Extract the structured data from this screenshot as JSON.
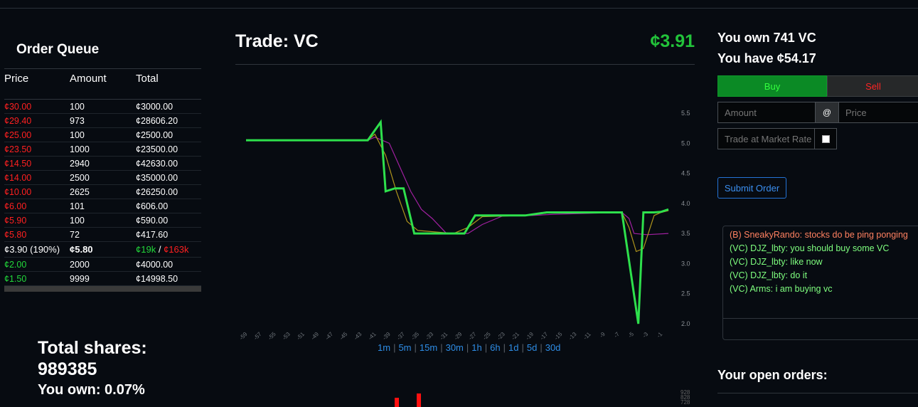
{
  "order_queue": {
    "title": "Order Queue",
    "headers": [
      "Price",
      "Amount",
      "Total"
    ],
    "sell_rows": [
      {
        "price": "¢30.00",
        "amount": "100",
        "total": "¢3000.00"
      },
      {
        "price": "¢29.40",
        "amount": "973",
        "total": "¢28606.20"
      },
      {
        "price": "¢25.00",
        "amount": "100",
        "total": "¢2500.00"
      },
      {
        "price": "¢23.50",
        "amount": "1000",
        "total": "¢23500.00"
      },
      {
        "price": "¢14.50",
        "amount": "2940",
        "total": "¢42630.00"
      },
      {
        "price": "¢14.00",
        "amount": "2500",
        "total": "¢35000.00"
      },
      {
        "price": "¢10.00",
        "amount": "2625",
        "total": "¢26250.00"
      },
      {
        "price": "¢6.00",
        "amount": "101",
        "total": "¢606.00"
      },
      {
        "price": "¢5.90",
        "amount": "100",
        "total": "¢590.00"
      },
      {
        "price": "¢5.80",
        "amount": "72",
        "total": "¢417.60"
      }
    ],
    "mid_row": {
      "price": "¢3.90 (190%)",
      "amount": "¢5.80",
      "buy_total": "¢19k",
      "slash": "/",
      "sell_total": "¢163k"
    },
    "buy_rows": [
      {
        "price": "¢2.00",
        "amount": "2000",
        "total": "¢4000.00"
      },
      {
        "price": "¢1.50",
        "amount": "9999",
        "total": "¢14998.50"
      }
    ]
  },
  "stats": {
    "total_shares_label": "Total shares:",
    "total_shares_value": "989385",
    "you_own": "You own: 0.07%"
  },
  "trade": {
    "title": "Trade: VC",
    "price": "¢3.91",
    "timeframes": [
      "1m",
      "5m",
      "15m",
      "30m",
      "1h",
      "6h",
      "1d",
      "5d",
      "30d"
    ]
  },
  "chart_data": {
    "type": "line",
    "x": [
      -59,
      -57,
      -55,
      -53,
      -51,
      -49,
      -47,
      -45,
      -43,
      -41,
      -39,
      -37,
      -35,
      -33,
      -31,
      -29,
      -27,
      -25,
      -23,
      -21,
      -19,
      -17,
      -15,
      -13,
      -11,
      -9,
      -7,
      -5,
      -3,
      -1
    ],
    "x_tick_labels": [
      "-59",
      "-57",
      "-55",
      "-53",
      "-51",
      "-49",
      "-47",
      "-45",
      "-43",
      "-41",
      "-39",
      "-37",
      "-35",
      "-33",
      "-31",
      "-29",
      "-27",
      "-25",
      "-23",
      "-21",
      "-19",
      "-17",
      "-15",
      "-13",
      "-11",
      "-9",
      "-7",
      "-5",
      "-3",
      "-1"
    ],
    "y_tick_labels": [
      "5.5",
      "5.0",
      "4.5",
      "4.0",
      "3.5",
      "3.0",
      "2.5",
      "2.0"
    ],
    "ylim": [
      2.0,
      5.5
    ],
    "series": [
      {
        "color": "#2ee04c",
        "points": [
          [
            -59,
            5.05
          ],
          [
            -42,
            5.05
          ],
          [
            -40.2,
            5.35
          ],
          [
            -39.5,
            4.2
          ],
          [
            -38.2,
            4.25
          ],
          [
            -37,
            4.25
          ],
          [
            -35.5,
            3.5
          ],
          [
            -30,
            3.5
          ],
          [
            -28.5,
            3.5
          ],
          [
            -27,
            3.8
          ],
          [
            -20,
            3.8
          ],
          [
            -17,
            3.85
          ],
          [
            -6.5,
            3.85
          ],
          [
            -4.2,
            2.0
          ],
          [
            -3.5,
            3.85
          ],
          [
            -2,
            3.85
          ],
          [
            -1,
            3.86
          ],
          [
            0,
            3.9
          ]
        ]
      },
      {
        "color": "#b0951c",
        "points": [
          [
            -59,
            5.05
          ],
          [
            -42,
            5.05
          ],
          [
            -41,
            5.15
          ],
          [
            -39.5,
            4.8
          ],
          [
            -38,
            4.2
          ],
          [
            -36.5,
            3.7
          ],
          [
            -35,
            3.55
          ],
          [
            -30,
            3.5
          ],
          [
            -28,
            3.6
          ],
          [
            -26,
            3.78
          ],
          [
            -20,
            3.8
          ],
          [
            -17,
            3.84
          ],
          [
            -6.5,
            3.85
          ],
          [
            -5.5,
            3.6
          ],
          [
            -4.5,
            3.2
          ],
          [
            -3.5,
            3.25
          ],
          [
            -2,
            3.8
          ],
          [
            -1,
            3.85
          ],
          [
            0,
            3.88
          ]
        ]
      },
      {
        "color": "#a020a0",
        "points": [
          [
            -59,
            5.05
          ],
          [
            -42,
            5.05
          ],
          [
            -41,
            5.1
          ],
          [
            -39,
            5.0
          ],
          [
            -37.5,
            4.6
          ],
          [
            -36,
            4.2
          ],
          [
            -34.5,
            3.9
          ],
          [
            -33,
            3.75
          ],
          [
            -31,
            3.5
          ],
          [
            -28,
            3.5
          ],
          [
            -26,
            3.65
          ],
          [
            -23,
            3.8
          ],
          [
            -19,
            3.8
          ],
          [
            -16,
            3.82
          ],
          [
            -6.5,
            3.85
          ],
          [
            -5.5,
            3.75
          ],
          [
            -4.8,
            3.5
          ],
          [
            -3,
            3.48
          ],
          [
            0,
            3.5
          ]
        ]
      }
    ]
  },
  "volume": {
    "labels": [
      "928",
      "828",
      "728"
    ]
  },
  "account": {
    "owned": "You own 741 VC",
    "cash": "You have ¢54.17"
  },
  "order_form": {
    "buy_label": "Buy",
    "sell_label": "Sell",
    "amount_placeholder": "Amount",
    "at_symbol": "@",
    "price_placeholder": "Price",
    "market_rate_placeholder": "Trade at Market Rate",
    "submit_label": "Submit Order"
  },
  "chat": {
    "messages": [
      {
        "text": "(B) SneakyRando: stocks do be ping ponging",
        "color": "#ff8060"
      },
      {
        "text": "(VC) DJZ_lbty: you should buy some VC",
        "color": "#7fff7f"
      },
      {
        "text": "(VC) DJZ_lbty: like now",
        "color": "#7fff7f"
      },
      {
        "text": "(VC) DJZ_lbty: do it",
        "color": "#7fff7f"
      },
      {
        "text": "(VC) Arms: i am buying vc",
        "color": "#7fff7f"
      }
    ]
  },
  "open_orders": {
    "title": "Your open orders:"
  },
  "colors": {
    "background": "#070b11",
    "sell": "#ff2020",
    "buy": "#22d83a",
    "accent": "#2e8de6"
  }
}
